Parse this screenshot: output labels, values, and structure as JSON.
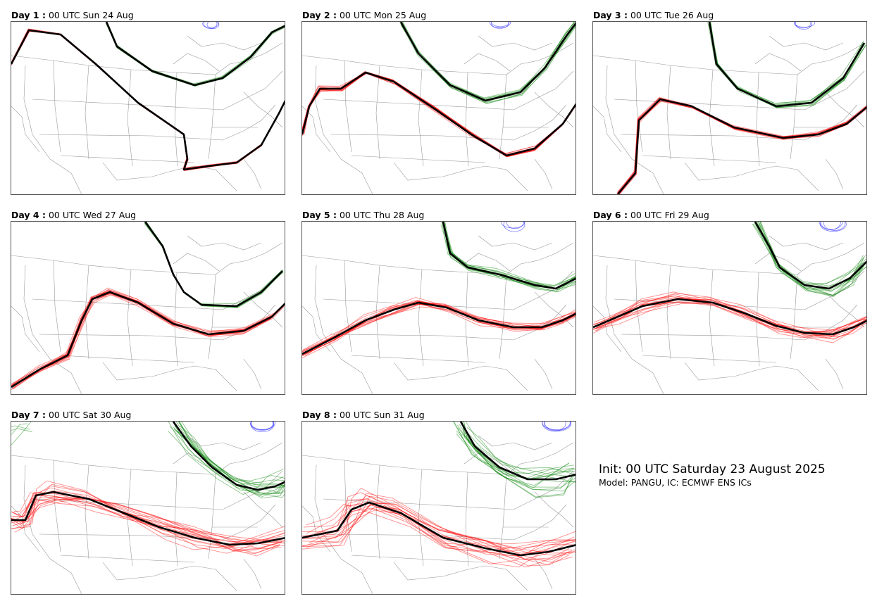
{
  "panels": [
    {
      "day_label": "Day 1 :",
      "time_label": "00 UTC Sun 24 Aug"
    },
    {
      "day_label": "Day 2 :",
      "time_label": "00 UTC Mon 25 Aug"
    },
    {
      "day_label": "Day 3 :",
      "time_label": "00 UTC Tue 26 Aug"
    },
    {
      "day_label": "Day 4 :",
      "time_label": "00 UTC Wed 27 Aug"
    },
    {
      "day_label": "Day 5 :",
      "time_label": "00 UTC Thu 28 Aug"
    },
    {
      "day_label": "Day 6 :",
      "time_label": "00 UTC Fri 29 Aug"
    },
    {
      "day_label": "Day 7 :",
      "time_label": "00 UTC Sat 30 Aug"
    },
    {
      "day_label": "Day 8 :",
      "time_label": "00 UTC Sun 31 Aug"
    }
  ],
  "info": {
    "init_text": "Init: 00 UTC Saturday 23 August 2025",
    "model_text": "Model: PANGU, IC: ECMWF ENS ICs"
  },
  "colors": {
    "red_contour": "#ff0000",
    "green_contour": "#008000",
    "blue_contour": "#0000ff",
    "ensemble_mean": "#000000",
    "map_lines": "#9a9a9a"
  }
}
